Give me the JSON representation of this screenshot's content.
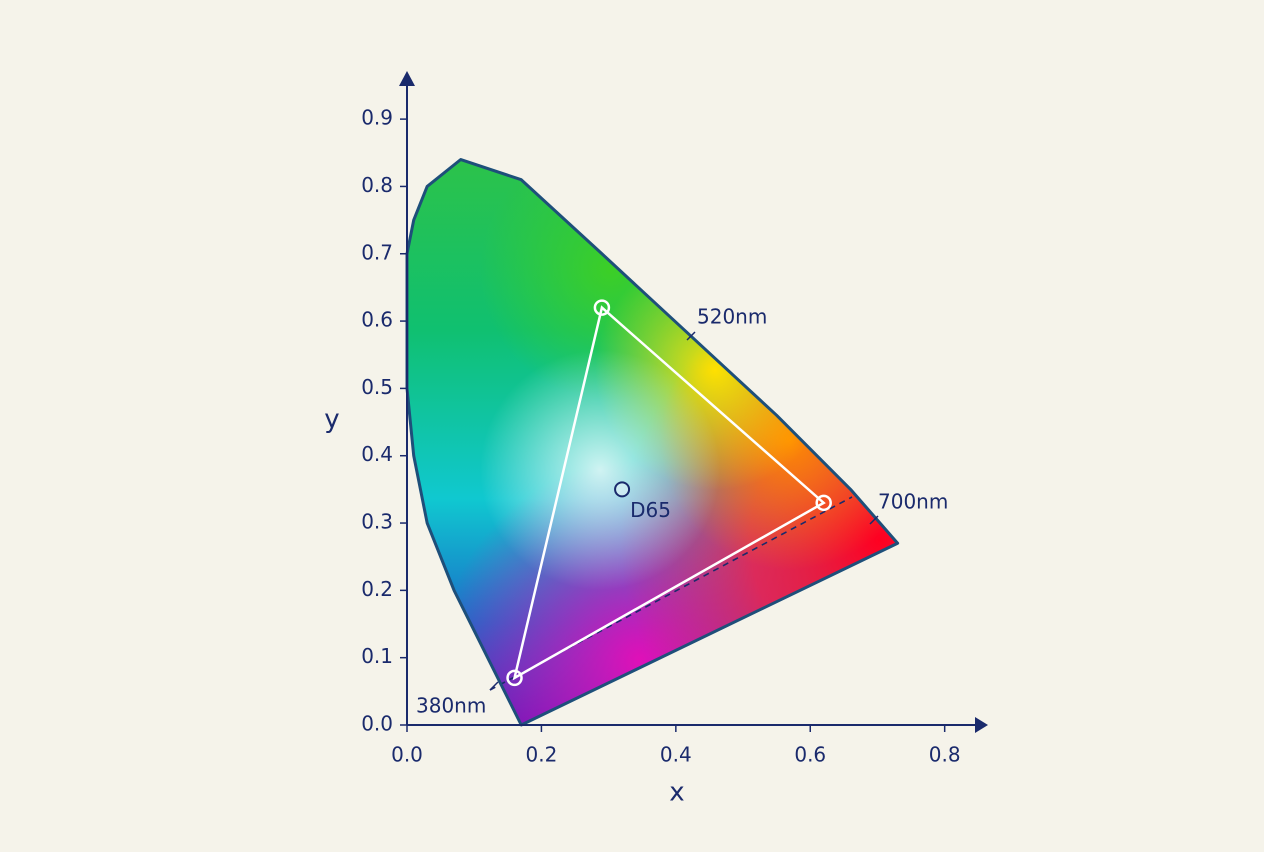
{
  "chart_data": {
    "type": "chromaticity",
    "x_label": "x",
    "y_label": "y",
    "xlim": [
      0,
      0.86
    ],
    "ylim": [
      0,
      0.97
    ],
    "xticks": [
      {
        "value": 0,
        "label": "0.0"
      },
      0.2,
      0.4,
      0.6,
      0.8
    ],
    "yticks": [
      {
        "value": 0,
        "label": "0.0"
      },
      0.1,
      0.2,
      0.3,
      0.4,
      0.5,
      0.6,
      0.7,
      0.8,
      0.9
    ],
    "axis_color": "#1a2a6c",
    "locus": {
      "color": "#1e4f7a",
      "x": [
        0.17,
        0.12,
        0.07,
        0.03,
        0.01,
        0.0,
        0.0,
        0.0,
        0.01,
        0.03,
        0.08,
        0.17,
        0.29,
        0.42,
        0.55,
        0.66,
        0.73
      ],
      "y": [
        0.0,
        0.1,
        0.2,
        0.3,
        0.4,
        0.5,
        0.6,
        0.7,
        0.75,
        0.8,
        0.84,
        0.81,
        0.7,
        0.58,
        0.46,
        0.35,
        0.27
      ]
    },
    "gamut": {
      "color": "#ffffff",
      "x": [
        0.29,
        0.62,
        0.16
      ],
      "y": [
        0.62,
        0.33,
        0.07
      ]
    },
    "white_point": {
      "label": "D65",
      "x": 0.32,
      "y": 0.35
    },
    "annotations": [
      "520nm",
      "700nm",
      "380nm"
    ]
  }
}
